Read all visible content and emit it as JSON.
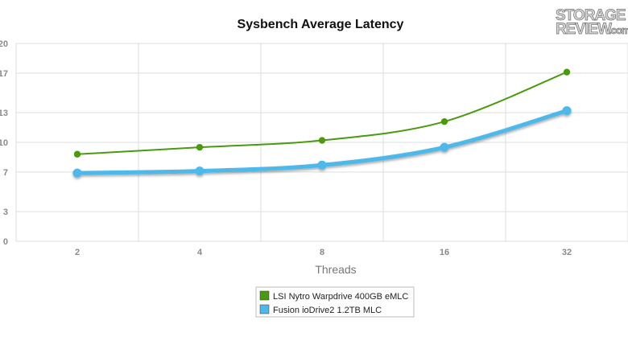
{
  "logo": {
    "line1": "STORAGE",
    "line2": "REVIEW",
    "suffix": ".com"
  },
  "chart_data": {
    "type": "line",
    "title": "Sysbench Average Latency",
    "xlabel": "Threads",
    "ylabel": "",
    "categories": [
      "2",
      "4",
      "8",
      "16",
      "32"
    ],
    "y_ticks": [
      "0",
      "3",
      "7",
      "10",
      "13",
      "17",
      "20"
    ],
    "ylim": [
      0,
      20
    ],
    "grid": true,
    "legend_position": "bottom-center",
    "series": [
      {
        "name": "LSI Nytro Warpdrive 400GB eMLC",
        "color": "#4a9a10",
        "values": [
          8.8,
          9.5,
          10.2,
          12.1,
          17.1
        ]
      },
      {
        "name": "Fusion ioDrive2 1.2TB MLC",
        "color": "#4db8ea",
        "values": [
          6.9,
          7.1,
          7.7,
          9.5,
          13.2
        ]
      }
    ]
  }
}
